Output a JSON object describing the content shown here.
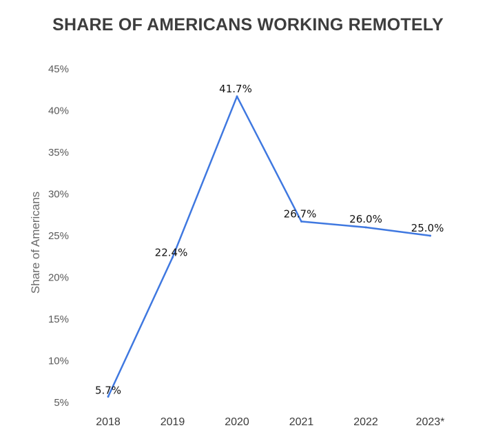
{
  "chart_data": {
    "type": "line",
    "title": "SHARE OF AMERICANS WORKING REMOTELY",
    "ylabel": "Share of Americans",
    "xlabel": "",
    "categories": [
      "2018",
      "2019",
      "2020",
      "2021",
      "2022",
      "2023*"
    ],
    "series": [
      {
        "values": [
          5.7,
          22.4,
          41.7,
          26.7,
          26.0,
          25.0
        ],
        "data_labels": [
          "5.7%",
          "22.4%",
          "41.7%",
          "26.7%",
          "26.0%",
          "25.0%"
        ],
        "color": "#3f78e0"
      }
    ],
    "yticks": [
      "5%",
      "10%",
      "15%",
      "20%",
      "25%",
      "30%",
      "35%",
      "40%",
      "45%"
    ],
    "ylim": [
      5,
      45
    ],
    "grid": false,
    "legend": "none"
  }
}
